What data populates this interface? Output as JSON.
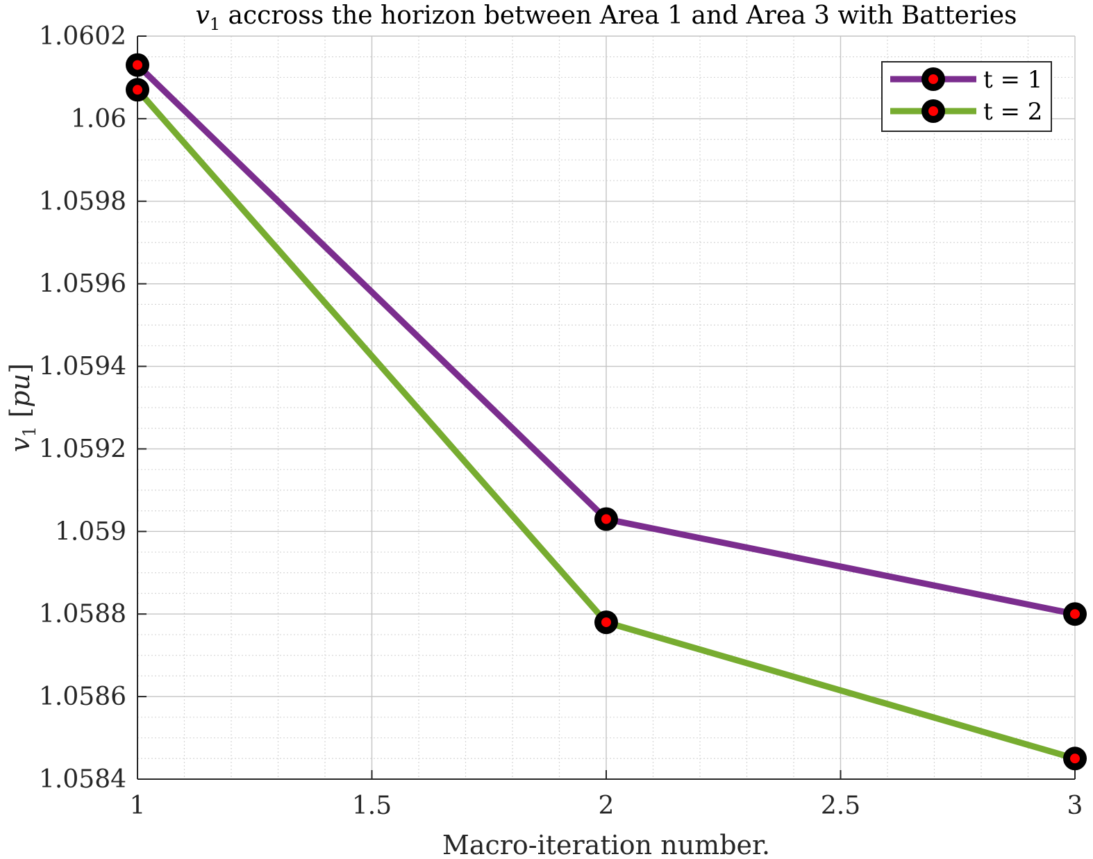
{
  "chart_data": {
    "type": "line",
    "title": {
      "var": "v",
      "sub": "1",
      "rest": " accross the horizon between Area 1 and Area 3 with Batteries"
    },
    "xlabel": "Macro-iteration number.",
    "ylabel": {
      "var": "v",
      "sub": "1",
      "unit_open": " [",
      "unit": "pu",
      "unit_close": "]"
    },
    "xlim": [
      1,
      3
    ],
    "ylim": [
      1.0584,
      1.0602
    ],
    "x_ticks": [
      1,
      1.5,
      2,
      2.5,
      3
    ],
    "x_tick_labels": [
      "1",
      "1.5",
      "2",
      "2.5",
      "3"
    ],
    "y_ticks": [
      1.0584,
      1.0586,
      1.0588,
      1.059,
      1.0592,
      1.0594,
      1.0596,
      1.0598,
      1.06,
      1.0602
    ],
    "y_tick_labels": [
      "1.0584",
      "1.0586",
      "1.0588",
      "1.059",
      "1.0592",
      "1.0594",
      "1.0596",
      "1.0598",
      "1.06",
      "1.0602"
    ],
    "grid": true,
    "minor_grid": true,
    "legend_position": "top-right",
    "x": [
      1,
      2,
      3
    ],
    "series": [
      {
        "name": "t = 1",
        "values": [
          1.06013,
          1.05903,
          1.0588
        ],
        "color": "#7b2d8e"
      },
      {
        "name": "t = 2",
        "values": [
          1.06007,
          1.05878,
          1.05845
        ],
        "color": "#77ac30"
      }
    ],
    "marker": {
      "face_color": "#ff0000",
      "edge_color": "#000000"
    }
  }
}
